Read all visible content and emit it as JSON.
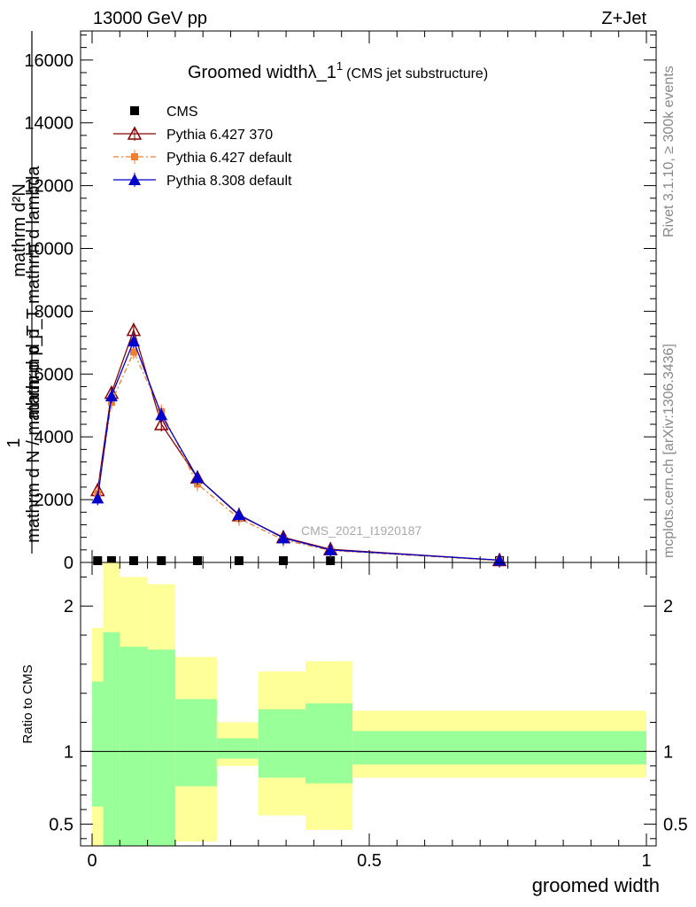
{
  "header": {
    "left": "13000 GeV pp",
    "right": "Z+Jet"
  },
  "side": {
    "rivet": "Rivet 3.1.10, ≥ 300k events",
    "mcplots": "mcplots.cern.ch [arXiv:1306.3436]"
  },
  "chart_data": {
    "type": "line",
    "title_main": "Groomed widthλ_1",
    "title_sup": "1",
    "title_sub": "(CMS jet substructure)",
    "watermark": "CMS_2021_I1920187",
    "xlabel": "groomed width",
    "ylabel_top": "mathrm d²N",
    "ylabel_bottom": "mathrm d p_T mathrm d lambda",
    "ylabel_sub": "T",
    "ylabel_lower_one": "1",
    "ylabel_lower_den": "mathrm d N / mathrm d p_T",
    "ylabel_lower_sub": "T",
    "ratio_ylabel": "Ratio to CMS",
    "xlim": [
      -0.02,
      1.0
    ],
    "ylim": [
      0,
      16500
    ],
    "ratio_ylim": [
      0.35,
      2.3
    ],
    "x_ticks": [
      "0",
      "0.5",
      "1"
    ],
    "y_ticks": [
      "0",
      "2000",
      "4000",
      "6000",
      "8000",
      "10000",
      "12000",
      "14000",
      "16000"
    ],
    "ratio_ticks": [
      "0.5",
      "1",
      "2"
    ],
    "bins": [
      {
        "lo": 0.0,
        "hi": 0.02
      },
      {
        "lo": 0.02,
        "hi": 0.05
      },
      {
        "lo": 0.05,
        "hi": 0.1
      },
      {
        "lo": 0.1,
        "hi": 0.15
      },
      {
        "lo": 0.15,
        "hi": 0.225
      },
      {
        "lo": 0.225,
        "hi": 0.3
      },
      {
        "lo": 0.3,
        "hi": 0.385
      },
      {
        "lo": 0.385,
        "hi": 0.47
      },
      {
        "lo": 0.47,
        "hi": 1.0
      }
    ],
    "legend": [
      {
        "name": "CMS",
        "marker": "square",
        "color": "#000000"
      },
      {
        "name": "Pythia 6.427 370",
        "marker": "triangle-open",
        "color": "#8b0000"
      },
      {
        "name": "Pythia 6.427 default",
        "marker": "square-small",
        "color": "#f08030"
      },
      {
        "name": "Pythia 8.308 default",
        "marker": "triangle",
        "color": "#0000cc"
      }
    ],
    "series": [
      {
        "name": "CMS",
        "x": [
          0.01,
          0.035,
          0.075,
          0.125,
          0.19,
          0.265,
          0.345,
          0.43,
          0.735
        ],
        "values": [
          0.0,
          0.0,
          0.0,
          0.0,
          0.0,
          0.0,
          0.0,
          0.0,
          0.0
        ]
      },
      {
        "name": "Pythia 6.427 370",
        "x": [
          0.01,
          0.035,
          0.075,
          0.125,
          0.19,
          0.265,
          0.345,
          0.43,
          0.735
        ],
        "values": [
          2300,
          5400,
          7400,
          4400,
          2700,
          1500,
          800,
          420,
          70
        ]
      },
      {
        "name": "Pythia 6.427 default",
        "x": [
          0.01,
          0.035,
          0.075,
          0.125,
          0.19,
          0.265,
          0.345,
          0.43,
          0.735
        ],
        "values": [
          2200,
          5100,
          6700,
          4800,
          2500,
          1400,
          720,
          380,
          60
        ]
      },
      {
        "name": "Pythia 8.308 default",
        "x": [
          0.01,
          0.035,
          0.075,
          0.125,
          0.19,
          0.265,
          0.345,
          0.43,
          0.735
        ],
        "values": [
          2050,
          5300,
          7050,
          4700,
          2700,
          1520,
          780,
          400,
          75
        ]
      }
    ],
    "ratio_bands": {
      "yellow": [
        {
          "lo": 0.0,
          "hi": 1.85
        },
        {
          "lo": 0.0,
          "hi": 2.4
        },
        {
          "lo": 0.0,
          "hi": 2.2
        },
        {
          "lo": 0.0,
          "hi": 2.15
        },
        {
          "lo": 0.38,
          "hi": 1.65
        },
        {
          "lo": 0.9,
          "hi": 1.2
        },
        {
          "lo": 0.56,
          "hi": 1.55
        },
        {
          "lo": 0.46,
          "hi": 1.62
        },
        {
          "lo": 0.82,
          "hi": 1.28
        }
      ],
      "green": [
        {
          "lo": 0.62,
          "hi": 1.48
        },
        {
          "lo": 0.0,
          "hi": 1.82
        },
        {
          "lo": 0.0,
          "hi": 1.72
        },
        {
          "lo": 0.0,
          "hi": 1.7
        },
        {
          "lo": 0.76,
          "hi": 1.36
        },
        {
          "lo": 0.95,
          "hi": 1.09
        },
        {
          "lo": 0.82,
          "hi": 1.29
        },
        {
          "lo": 0.78,
          "hi": 1.33
        },
        {
          "lo": 0.91,
          "hi": 1.14
        }
      ],
      "colors": {
        "yellow": "#ffff99",
        "green": "#99ff99"
      }
    }
  }
}
